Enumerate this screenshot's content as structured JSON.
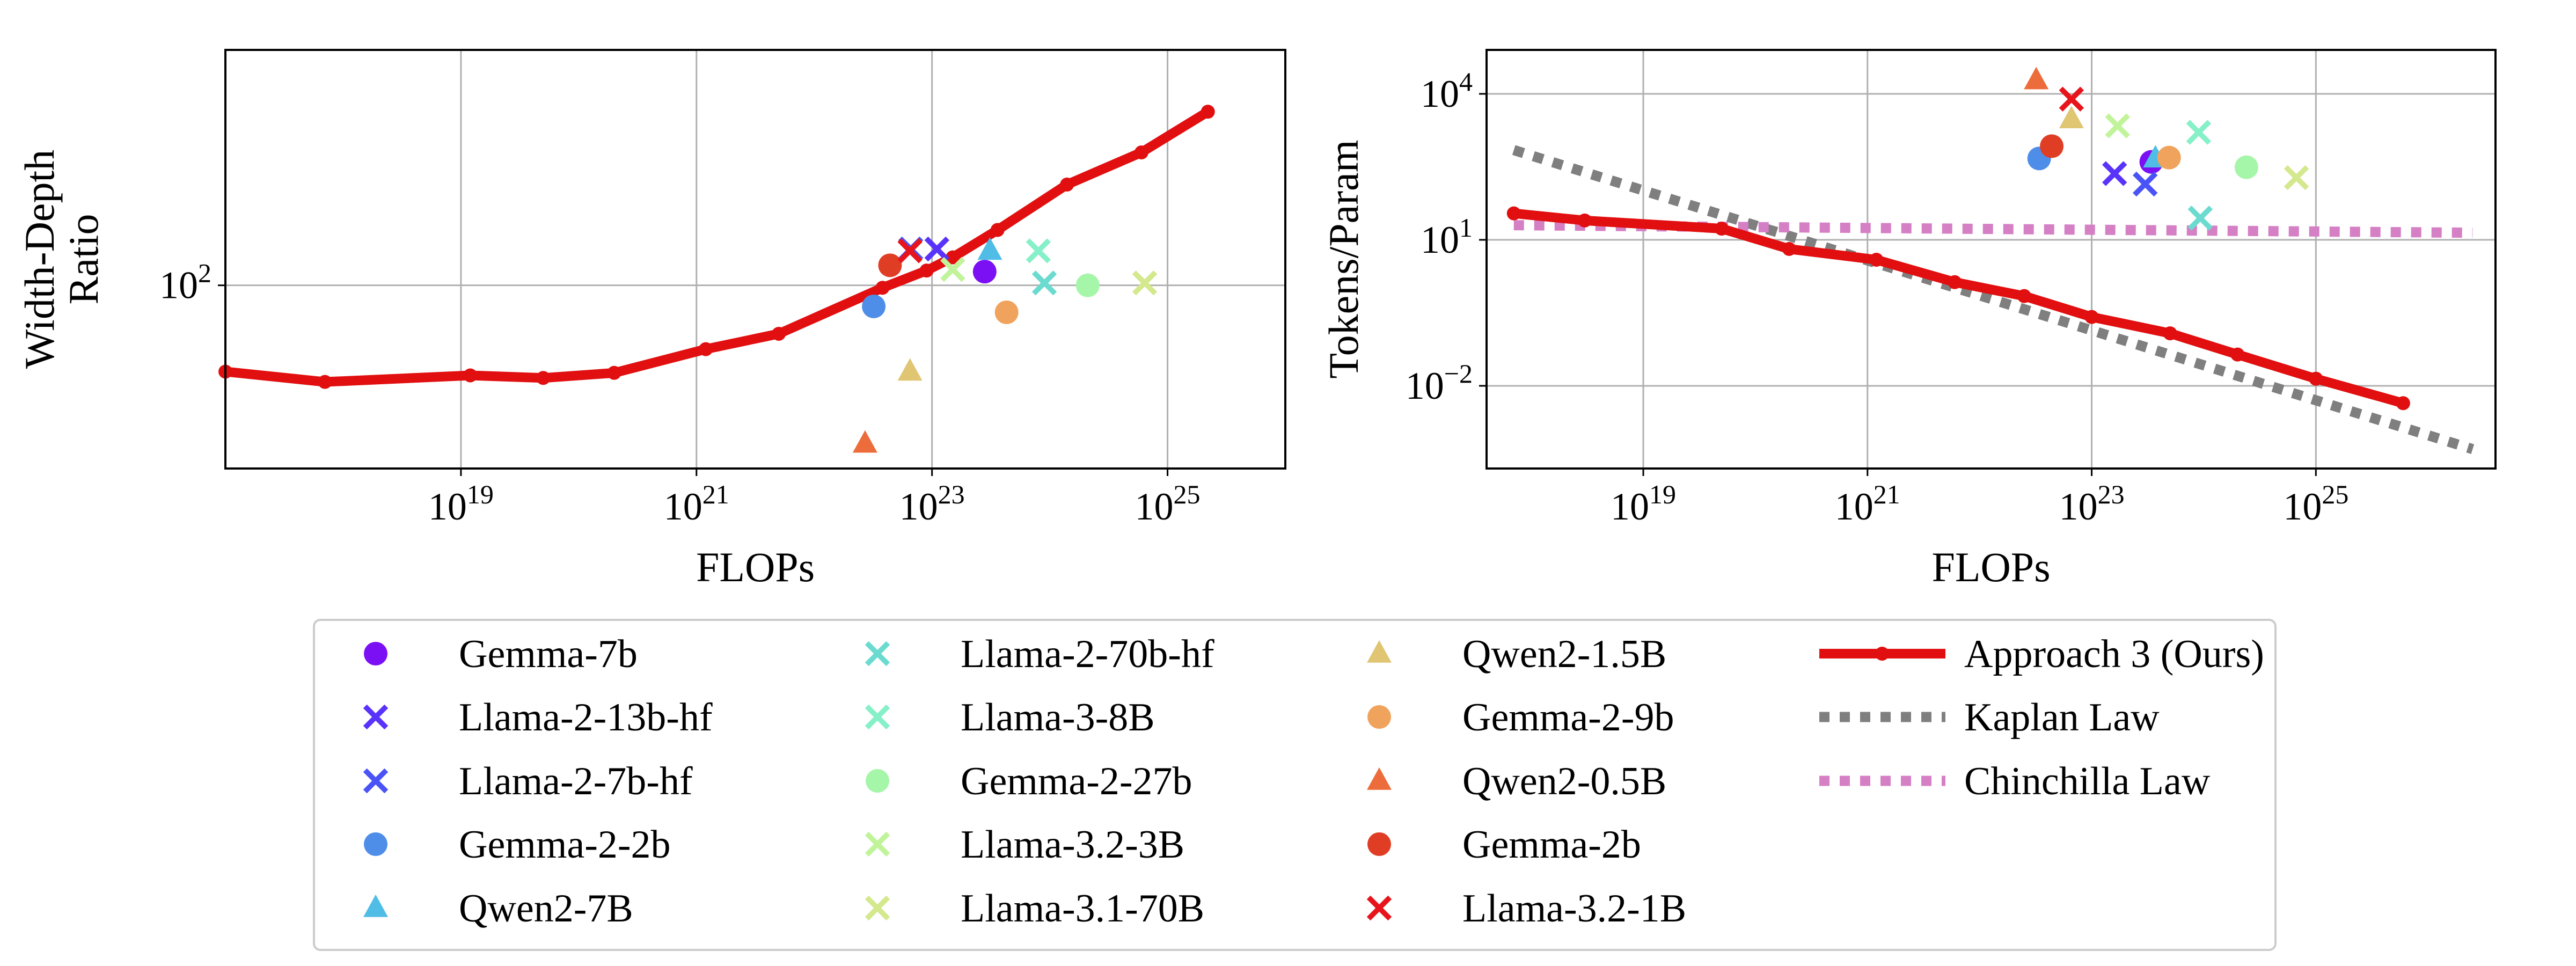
{
  "chart_data": [
    {
      "type": "scatter",
      "xlabel": "FLOPs",
      "ylabel": [
        "Width-Depth",
        "Ratio"
      ],
      "xscale": "log",
      "yscale": "log",
      "xlim": [
        1e+17,
        1e+26
      ],
      "ylim": [
        22,
        700
      ],
      "xticks": [
        {
          "mantissa": "10",
          "exp": "19",
          "value": 1e+19
        },
        {
          "mantissa": "10",
          "exp": "21",
          "value": 1e+21
        },
        {
          "mantissa": "10",
          "exp": "23",
          "value": 1e+23
        },
        {
          "mantissa": "10",
          "exp": "25",
          "value": 1e+25
        }
      ],
      "yticks": [
        {
          "mantissa": "10",
          "exp": "2",
          "value": 100
        }
      ],
      "grid": true,
      "models": [
        {
          "name": "Gemma-7b",
          "x": 2.8e+23,
          "y": 112
        },
        {
          "name": "Llama-2-13b-hf",
          "x": 1.1e+23,
          "y": 135
        },
        {
          "name": "Llama-2-7b-hf",
          "x": 6.6e+22,
          "y": 135
        },
        {
          "name": "Gemma-2-2b",
          "x": 3.2e+22,
          "y": 84
        },
        {
          "name": "Qwen2-7B",
          "x": 3.1e+23,
          "y": 133
        },
        {
          "name": "Llama-2-70b-hf",
          "x": 9e+23,
          "y": 102
        },
        {
          "name": "Llama-3-8B",
          "x": 8e+23,
          "y": 133
        },
        {
          "name": "Gemma-2-27b",
          "x": 2.1e+24,
          "y": 100
        },
        {
          "name": "Llama-3.2-3B",
          "x": 1.5e+23,
          "y": 114
        },
        {
          "name": "Llama-3.1-70B",
          "x": 6.4e+24,
          "y": 102
        },
        {
          "name": "Qwen2-1.5B",
          "x": 6.5e+22,
          "y": 49
        },
        {
          "name": "Gemma-2-9b",
          "x": 4.3e+23,
          "y": 80
        },
        {
          "name": "Qwen2-0.5B",
          "x": 2.7e+22,
          "y": 27
        },
        {
          "name": "Gemma-2b",
          "x": 4.4e+22,
          "y": 118
        },
        {
          "name": "Llama-3.2-1B",
          "x": 6.5e+22,
          "y": 133
        }
      ],
      "approach3": {
        "x": [
          1e+17,
          7e+17,
          1.2e+19,
          5e+19,
          2e+20,
          1.2e+21,
          5e+21,
          3.8e+22,
          9e+22,
          1.5e+23,
          3.6e+23,
          1.4e+24,
          6e+24,
          2.2e+25
        ],
        "y": [
          49,
          45,
          47.5,
          46.5,
          48.5,
          59,
          67,
          98,
          113,
          126,
          158,
          230,
          300,
          420
        ]
      }
    },
    {
      "type": "scatter",
      "xlabel": "FLOPs",
      "ylabel": "Tokens/Param",
      "xscale": "log",
      "yscale": "log",
      "xlim": [
        4e+17,
        4e+26
      ],
      "ylim": [
        0.0002,
        80000
      ],
      "xticks": [
        {
          "mantissa": "10",
          "exp": "19",
          "value": 1e+19
        },
        {
          "mantissa": "10",
          "exp": "21",
          "value": 1e+21
        },
        {
          "mantissa": "10",
          "exp": "23",
          "value": 1e+23
        },
        {
          "mantissa": "10",
          "exp": "25",
          "value": 1e+25
        }
      ],
      "yticks": [
        {
          "mantissa": "10",
          "exp": "4",
          "value": 10000
        },
        {
          "mantissa": "10",
          "exp": "1",
          "value": 10
        },
        {
          "mantissa": "10",
          "exp": "−2",
          "value": 0.01
        }
      ],
      "grid": true,
      "models": [
        {
          "name": "Gemma-7b",
          "x": 3.4e+23,
          "y": 400
        },
        {
          "name": "Llama-2-13b-hf",
          "x": 1.6e+23,
          "y": 230
        },
        {
          "name": "Llama-2-7b-hf",
          "x": 3e+23,
          "y": 140
        },
        {
          "name": "Gemma-2-2b",
          "x": 3.4e+22,
          "y": 470
        },
        {
          "name": "Qwen2-7B",
          "x": 3.7e+23,
          "y": 470
        },
        {
          "name": "Llama-2-70b-hf",
          "x": 9.3e+23,
          "y": 28
        },
        {
          "name": "Llama-3-8B",
          "x": 9e+23,
          "y": 1620
        },
        {
          "name": "Gemma-2-27b",
          "x": 2.4e+24,
          "y": 310
        },
        {
          "name": "Llama-3.2-3B",
          "x": 1.7e+23,
          "y": 2200
        },
        {
          "name": "Llama-3.1-70B",
          "x": 6.7e+24,
          "y": 190
        },
        {
          "name": "Qwen2-1.5B",
          "x": 6.6e+22,
          "y": 3000
        },
        {
          "name": "Gemma-2-9b",
          "x": 4.9e+23,
          "y": 490
        },
        {
          "name": "Qwen2-0.5B",
          "x": 3.2e+22,
          "y": 19000
        },
        {
          "name": "Gemma-2b",
          "x": 4.4e+22,
          "y": 840
        },
        {
          "name": "Llama-3.2-1B",
          "x": 6.6e+22,
          "y": 7800
        }
      ],
      "approach3": {
        "x": [
          7e+17,
          3e+18,
          5e+19,
          2e+20,
          1.2e+21,
          6e+21,
          2.5e+22,
          1e+23,
          5e+23,
          2e+24,
          1e+25,
          6e+25
        ],
        "y": [
          35,
          25,
          17,
          6.5,
          3.9,
          1.35,
          0.7,
          0.26,
          0.12,
          0.044,
          0.014,
          0.0044
        ]
      },
      "kaplan": {
        "x": [
          7e+17,
          2.5e+26
        ],
        "y": [
          700,
          0.0005
        ]
      },
      "chinchilla": {
        "x": [
          7e+17,
          2.5e+26
        ],
        "y": [
          20,
          14
        ]
      }
    }
  ],
  "legend": [
    {
      "label": "Gemma-7b",
      "marker": "circle",
      "color": "#7b10f4"
    },
    {
      "label": "Llama-2-13b-hf",
      "marker": "x",
      "color": "#5a33fb"
    },
    {
      "label": "Llama-2-7b-hf",
      "marker": "x",
      "color": "#4a53f6"
    },
    {
      "label": "Gemma-2-2b",
      "marker": "circle",
      "color": "#4f8ee8"
    },
    {
      "label": "Qwen2-7B",
      "marker": "triangle",
      "color": "#4fbde6"
    },
    {
      "label": "Llama-2-70b-hf",
      "marker": "x",
      "color": "#6bdbd0"
    },
    {
      "label": "Llama-3-8B",
      "marker": "x",
      "color": "#86f0c8"
    },
    {
      "label": "Gemma-2-27b",
      "marker": "circle",
      "color": "#a6f6a9"
    },
    {
      "label": "Llama-3.2-3B",
      "marker": "x",
      "color": "#c1f49a"
    },
    {
      "label": "Llama-3.1-70B",
      "marker": "x",
      "color": "#d4e88e"
    },
    {
      "label": "Qwen2-1.5B",
      "marker": "triangle",
      "color": "#e0c573"
    },
    {
      "label": "Gemma-2-9b",
      "marker": "circle",
      "color": "#f0a35c"
    },
    {
      "label": "Qwen2-0.5B",
      "marker": "triangle",
      "color": "#ed6c3b"
    },
    {
      "label": "Gemma-2b",
      "marker": "circle",
      "color": "#e03d25"
    },
    {
      "label": "Llama-3.2-1B",
      "marker": "x",
      "color": "#e8141c"
    },
    {
      "label": "Approach 3 (Ours)",
      "marker": "line",
      "color": "#e10f10"
    },
    {
      "label": "Kaplan Law",
      "marker": "dotted",
      "color": "#7f7f7f"
    },
    {
      "label": "Chinchilla Law",
      "marker": "dotted",
      "color": "#d57fc5"
    }
  ]
}
